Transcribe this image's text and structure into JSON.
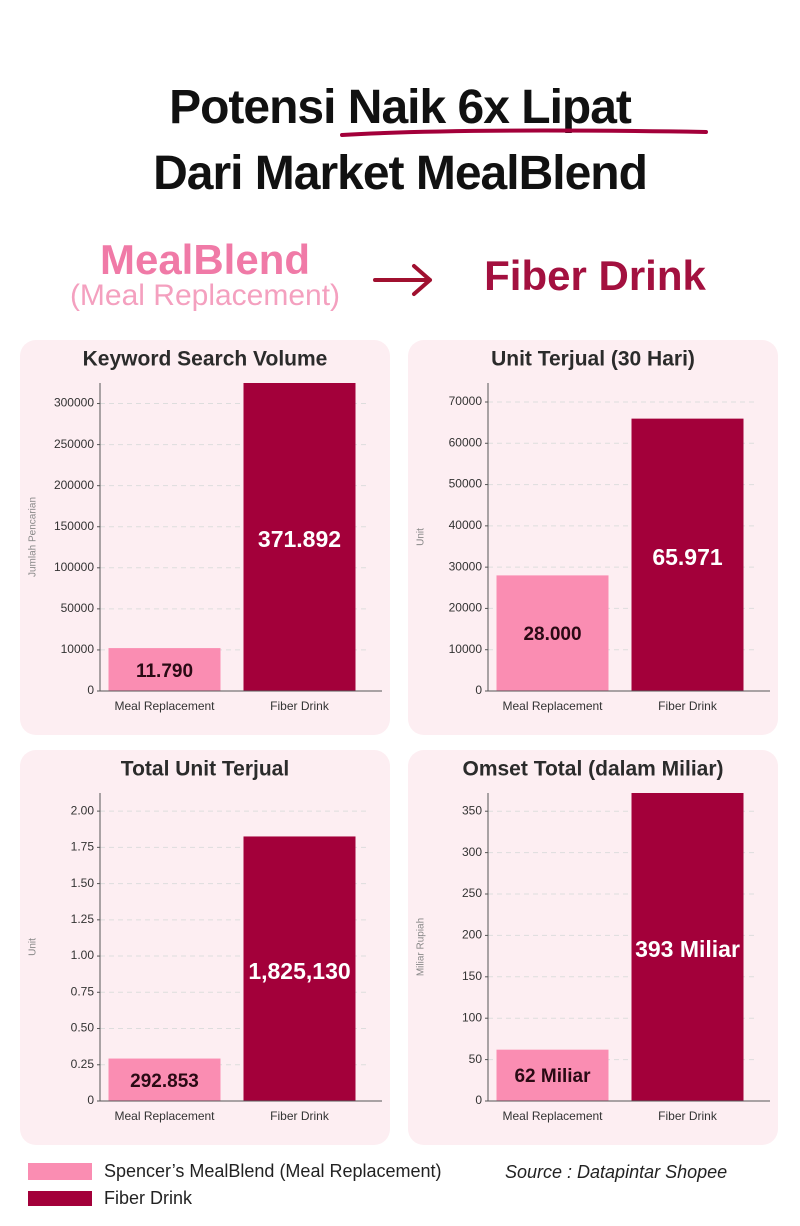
{
  "header": {
    "title_start": "Potensi",
    "title_highlight": "Naik 6x Lipat",
    "title_line2": "Dari Market MealBlend",
    "from_name": "MealBlend",
    "from_note": "(Meal Replacement)",
    "to_name": "Fiber Drink"
  },
  "chart_data": [
    {
      "type": "bar",
      "title": "Keyword Search Volume",
      "y_label": "Jumlah Pencarian",
      "categories": [
        "Meal Replacement",
        "Fiber Drink"
      ],
      "values": [
        11790,
        371892
      ],
      "value_labels": [
        "11.790",
        "371.892"
      ],
      "colors": [
        "#fa8db2",
        "#a3003a"
      ],
      "ylim": [
        0,
        325000
      ],
      "yticks": [
        0,
        10000,
        50000,
        100000,
        150000,
        200000,
        250000,
        300000
      ],
      "grid": true
    },
    {
      "type": "bar",
      "title": "Unit Terjual (30 Hari)",
      "y_label": "Unit",
      "categories": [
        "Meal Replacement",
        "Fiber Drink"
      ],
      "values": [
        28000,
        65971
      ],
      "value_labels": [
        "28.000",
        "65.971"
      ],
      "colors": [
        "#fa8db2",
        "#a3003a"
      ],
      "ylim": [
        0,
        74600
      ],
      "yticks": [
        0,
        10000,
        20000,
        30000,
        40000,
        50000,
        60000,
        70000
      ],
      "grid": true
    },
    {
      "type": "bar",
      "title": "Total Unit Terjual",
      "y_label": "Unit",
      "categories": [
        "Meal Replacement",
        "Fiber Drink"
      ],
      "values": [
        0.292853,
        1.82513
      ],
      "value_labels": [
        "292.853",
        "1,825,130"
      ],
      "colors": [
        "#fa8db2",
        "#a3003a"
      ],
      "ylim": [
        0,
        2.125
      ],
      "yticks": [
        0,
        0.25,
        {
          "value": 0.5,
          "label": "0.50"
        },
        0.75,
        {
          "value": 1,
          "label": "1.00"
        },
        1.25,
        {
          "value": 1.5,
          "label": "1.50"
        },
        1.75,
        {
          "value": 2,
          "label": "2.00"
        }
      ],
      "grid": true
    },
    {
      "type": "bar",
      "title": "Omset Total (dalam Miliar)",
      "y_label": "Miliar Rupiah",
      "categories": [
        "Meal Replacement",
        "Fiber Drink"
      ],
      "values": [
        62,
        393
      ],
      "value_labels": [
        "62 Miliar",
        "393 Miliar"
      ],
      "colors": [
        "#fa8db2",
        "#a3003a"
      ],
      "ylim": [
        0,
        372
      ],
      "yticks": [
        0,
        50,
        100,
        150,
        200,
        250,
        300,
        350
      ],
      "grid": true
    }
  ],
  "legend": [
    {
      "name": "Spencer’s MealBlend (Meal Replacement)",
      "color": "#fa8db2"
    },
    {
      "name": "Fiber Drink",
      "color": "#a3003a"
    }
  ],
  "source": "Source : Datapintar Shopee"
}
